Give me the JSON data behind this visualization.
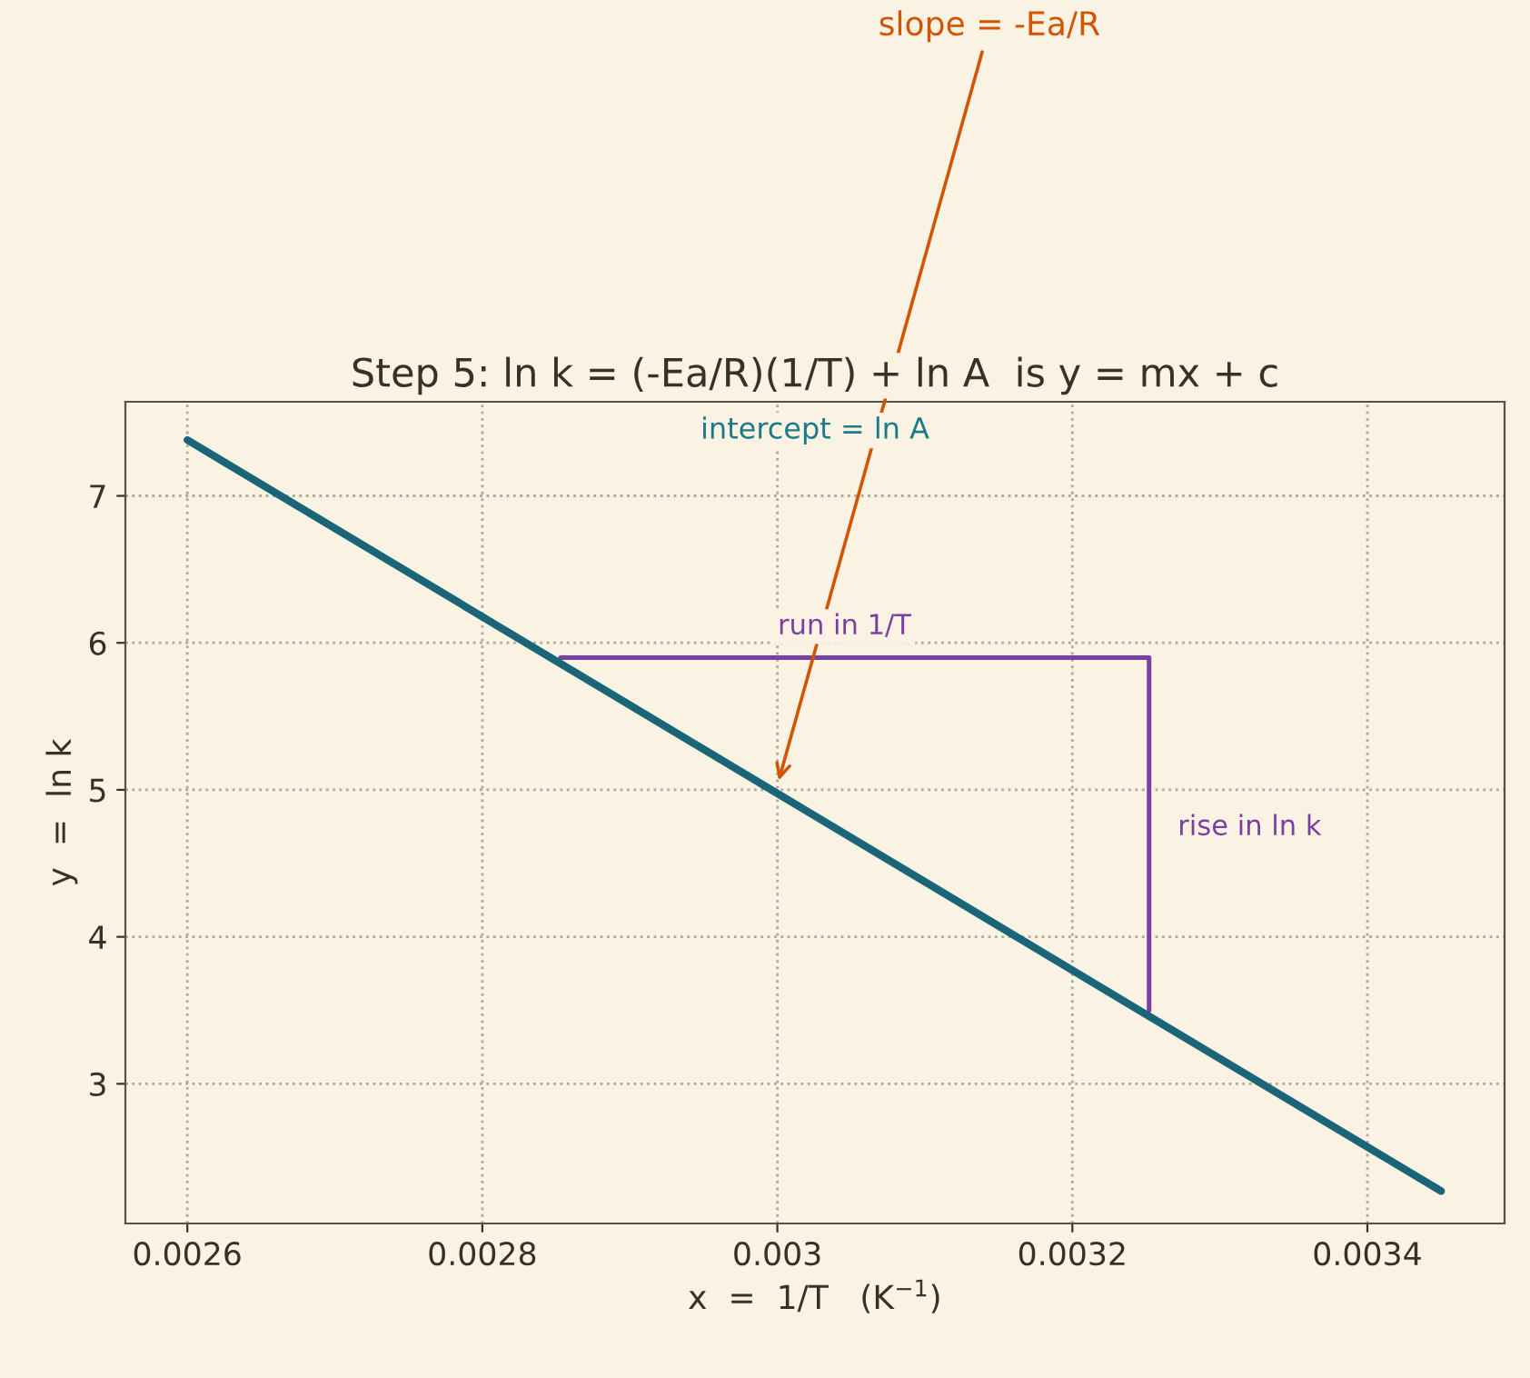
{
  "chart_data": {
    "type": "line",
    "title": "Step 5: ln k = (-Ea/R)(1/T) + ln A  is y = mx + c",
    "xlabel": "x  =  1/T   (K$^{−1}$)",
    "ylabel": "y  =  ln k",
    "series": [
      {
        "color": "#1a6678",
        "x": [
          0.0026,
          0.00345
        ],
        "values": [
          7.38,
          2.27
        ]
      },
      {
        "color": "#7b3fa0",
        "x": [
          0.002853,
          0.003252,
          0.003252
        ],
        "values": [
          5.9,
          5.9,
          3.5
        ]
      }
    ],
    "xlim": [
      0.002558,
      0.003493
    ],
    "ylim": [
      2.05,
      7.64
    ],
    "xticks": [
      0.0026,
      0.0028,
      0.003,
      0.0032,
      0.0034
    ],
    "yticks": [
      3,
      4,
      5,
      6,
      7
    ],
    "annotations": [
      {
        "text": "slope = -Ea/R",
        "x": 0.003,
        "y": 5.03
      },
      "intercept = ln A",
      "run in 1/T",
      "rise in ln k"
    ],
    "grid": true,
    "legend": false,
    "marker": "none",
    "line_style": "solid"
  }
}
